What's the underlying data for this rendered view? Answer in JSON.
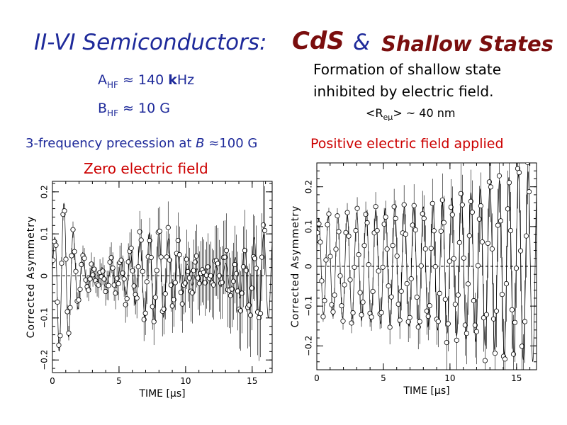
{
  "slide": {
    "title_left": "II-VI Semiconductors:",
    "title_cds": "CdS",
    "title_amp": "&",
    "title_shallow": "Shallow States",
    "a_hf_sub": "HF",
    "a_hf_rest": " ≈ 140 ",
    "a_hf_bold": "k",
    "a_hf_unit": "Hz",
    "b_hf_sub": "HF",
    "b_hf_rest": " ≈ 10 G",
    "desc_line1": "Formation of shallow state",
    "desc_line2": "inhibited by electric field.",
    "r_prefix": "<R",
    "r_sub": "eμ",
    "r_suffix": "> ~ 40 nm",
    "freq_prefix": "3-frequency precession at ",
    "freq_b": "B",
    "freq_suffix": " ≈100 G",
    "zero_label": "Zero electric field",
    "positive_label": "Positive electric field applied"
  },
  "chart_data": [
    {
      "type": "scatter",
      "name": "zero-field",
      "xlabel": "TIME [μs]",
      "ylabel": "Corrected Asymmetry",
      "xlim": [
        0,
        16.5
      ],
      "ylim": [
        -0.23,
        0.225
      ],
      "xticks": [
        0,
        5,
        10,
        15
      ],
      "yticks": [
        -0.2,
        -0.1,
        0,
        0.1,
        0.2
      ],
      "ytick_labels": [
        "−0.2",
        "−0.1",
        "0",
        "0.1",
        "0.2"
      ],
      "zero_line": true,
      "marker": "open-circle",
      "envelope": [
        [
          0,
          0.05
        ],
        [
          0.5,
          0.18
        ],
        [
          1,
          0.17
        ],
        [
          1.6,
          0.1
        ],
        [
          2.2,
          0.06
        ],
        [
          3,
          0.02
        ],
        [
          4,
          0.02
        ],
        [
          5,
          0.03
        ],
        [
          6,
          0.06
        ],
        [
          7,
          0.1
        ],
        [
          8,
          0.11
        ],
        [
          9,
          0.08
        ],
        [
          10,
          0.03
        ],
        [
          11,
          0.015
        ],
        [
          12,
          0.02
        ],
        [
          13,
          0.03
        ],
        [
          14,
          0.05
        ],
        [
          15,
          0.09
        ],
        [
          16,
          0.1
        ]
      ],
      "frequency_mhz": 1.4
    },
    {
      "type": "scatter",
      "name": "positive-field",
      "xlabel": "TIME [μs]",
      "ylabel": "Corrected Asymmetry",
      "xlim": [
        0,
        16.5
      ],
      "ylim": [
        -0.26,
        0.26
      ],
      "xticks": [
        0,
        5,
        10,
        15
      ],
      "yticks": [
        -0.2,
        -0.1,
        0,
        0.1,
        0.2
      ],
      "ytick_labels": [
        "−0.2",
        "−0.1",
        "0",
        "0.1",
        "0.2"
      ],
      "zero_line": true,
      "marker": "open-circle",
      "envelope": [
        [
          0,
          0.12
        ],
        [
          2,
          0.13
        ],
        [
          4,
          0.14
        ],
        [
          6,
          0.15
        ],
        [
          8,
          0.15
        ],
        [
          10,
          0.17
        ],
        [
          12,
          0.19
        ],
        [
          14,
          0.22
        ],
        [
          16,
          0.24
        ]
      ],
      "frequency_mhz": 1.4
    }
  ]
}
